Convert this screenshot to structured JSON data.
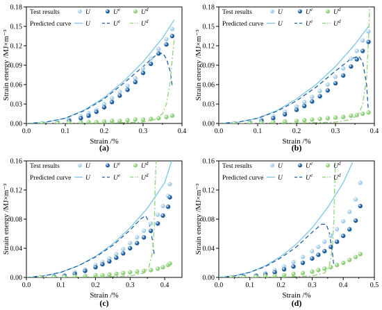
{
  "colors": {
    "U": "#a9cfe8",
    "Ue": "#1e5fa0",
    "Ud": "#8fd07a",
    "curve_U": "#7cc6e4",
    "curve_Ue": "#1e5fa0",
    "curve_Ud": "#8fd07a",
    "axis": "#000000"
  },
  "legend": {
    "test_label": "Test results",
    "pred_label": "Predicted curve",
    "sym_U": "U",
    "sym_Ue": "U",
    "sym_Ue_sup": "e",
    "sym_Ud": "U",
    "sym_Ud_sup": "d"
  },
  "chart_data": [
    {
      "type": "scatter",
      "panel_label": "(a)",
      "xlabel": "Strain /%",
      "ylabel": "Strain energy /MJ×m⁻³",
      "xlim": [
        0,
        0.4
      ],
      "ylim": [
        0,
        0.18
      ],
      "xticks": [
        "0.0",
        "0.1",
        "0.2",
        "0.3",
        "0.4"
      ],
      "yticks": [
        "0.00",
        "0.03",
        "0.06",
        "0.09",
        "0.12",
        "0.15",
        "0.18"
      ],
      "x_tick_values": [
        0,
        0.1,
        0.2,
        0.3,
        0.4
      ],
      "y_tick_values": [
        0,
        0.03,
        0.06,
        0.09,
        0.12,
        0.15,
        0.18
      ],
      "series": [
        {
          "name": "U",
          "kind": "points",
          "x": [
            0.04,
            0.08,
            0.11,
            0.14,
            0.16,
            0.18,
            0.2,
            0.22,
            0.24,
            0.26,
            0.28,
            0.3,
            0.32,
            0.34,
            0.36,
            0.375
          ],
          "y": [
            0.0,
            0.002,
            0.006,
            0.011,
            0.016,
            0.021,
            0.03,
            0.039,
            0.049,
            0.058,
            0.07,
            0.085,
            0.1,
            0.115,
            0.13,
            0.146
          ]
        },
        {
          "name": "Ue",
          "kind": "points",
          "x": [
            0.04,
            0.08,
            0.11,
            0.14,
            0.16,
            0.18,
            0.2,
            0.22,
            0.24,
            0.26,
            0.28,
            0.3,
            0.32,
            0.34,
            0.36,
            0.375
          ],
          "y": [
            0.0,
            0.001,
            0.004,
            0.008,
            0.012,
            0.018,
            0.025,
            0.033,
            0.043,
            0.052,
            0.064,
            0.078,
            0.092,
            0.108,
            0.122,
            0.135
          ]
        },
        {
          "name": "Ud",
          "kind": "points",
          "x": [
            0.04,
            0.08,
            0.11,
            0.14,
            0.16,
            0.18,
            0.2,
            0.22,
            0.24,
            0.26,
            0.28,
            0.3,
            0.32,
            0.34,
            0.36,
            0.375
          ],
          "y": [
            0.0,
            0.0005,
            0.001,
            0.0015,
            0.002,
            0.002,
            0.003,
            0.004,
            0.004,
            0.005,
            0.006,
            0.006,
            0.007,
            0.008,
            0.01,
            0.012
          ]
        },
        {
          "name": "U",
          "kind": "curve",
          "x": [
            0,
            0.05,
            0.1,
            0.15,
            0.2,
            0.25,
            0.3,
            0.35,
            0.38
          ],
          "y": [
            0,
            0.002,
            0.008,
            0.021,
            0.04,
            0.065,
            0.095,
            0.132,
            0.16
          ]
        },
        {
          "name": "Ue",
          "kind": "curve",
          "x": [
            0,
            0.05,
            0.1,
            0.15,
            0.2,
            0.25,
            0.3,
            0.33,
            0.35,
            0.36,
            0.37,
            0.375
          ],
          "y": [
            0,
            0.002,
            0.008,
            0.02,
            0.038,
            0.062,
            0.088,
            0.104,
            0.109,
            0.1,
            0.08,
            0.058
          ]
        },
        {
          "name": "Ud",
          "kind": "curve",
          "x": [
            0,
            0.1,
            0.2,
            0.3,
            0.33,
            0.35,
            0.36,
            0.37,
            0.375,
            0.38
          ],
          "y": [
            0,
            0.0,
            0.0005,
            0.002,
            0.006,
            0.015,
            0.03,
            0.065,
            0.1,
            0.13
          ]
        }
      ]
    },
    {
      "type": "scatter",
      "panel_label": "(b)",
      "xlabel": "Strain /%",
      "ylabel": "Strain energy /MJ×m⁻³",
      "xlim": [
        0,
        0.4
      ],
      "ylim": [
        0,
        0.18
      ],
      "xticks": [
        "0.0",
        "0.1",
        "0.2",
        "0.3",
        "0.4"
      ],
      "yticks": [
        "0.00",
        "0.03",
        "0.06",
        "0.09",
        "0.12",
        "0.15",
        "0.18"
      ],
      "x_tick_values": [
        0,
        0.1,
        0.2,
        0.3,
        0.4
      ],
      "y_tick_values": [
        0,
        0.03,
        0.06,
        0.09,
        0.12,
        0.15,
        0.18
      ],
      "series": [
        {
          "name": "U",
          "kind": "points",
          "x": [
            0.04,
            0.08,
            0.11,
            0.14,
            0.17,
            0.2,
            0.22,
            0.24,
            0.26,
            0.28,
            0.3,
            0.32,
            0.34,
            0.355,
            0.37,
            0.385
          ],
          "y": [
            0.0,
            0.002,
            0.006,
            0.011,
            0.018,
            0.026,
            0.033,
            0.041,
            0.05,
            0.06,
            0.072,
            0.085,
            0.1,
            0.112,
            0.128,
            0.142
          ]
        },
        {
          "name": "Ue",
          "kind": "points",
          "x": [
            0.04,
            0.08,
            0.11,
            0.14,
            0.17,
            0.2,
            0.22,
            0.24,
            0.26,
            0.28,
            0.3,
            0.32,
            0.34,
            0.355,
            0.37,
            0.385
          ],
          "y": [
            0.0,
            0.001,
            0.004,
            0.008,
            0.014,
            0.021,
            0.027,
            0.034,
            0.042,
            0.051,
            0.062,
            0.074,
            0.088,
            0.099,
            0.112,
            0.126
          ]
        },
        {
          "name": "Ud",
          "kind": "points",
          "x": [
            0.04,
            0.08,
            0.11,
            0.14,
            0.17,
            0.2,
            0.22,
            0.24,
            0.26,
            0.28,
            0.3,
            0.32,
            0.34,
            0.355,
            0.37,
            0.385
          ],
          "y": [
            0.0,
            0.0005,
            0.001,
            0.002,
            0.003,
            0.004,
            0.005,
            0.006,
            0.007,
            0.008,
            0.009,
            0.01,
            0.012,
            0.013,
            0.015,
            0.017
          ]
        },
        {
          "name": "U",
          "kind": "curve",
          "x": [
            0,
            0.05,
            0.1,
            0.15,
            0.2,
            0.25,
            0.3,
            0.35,
            0.385
          ],
          "y": [
            0,
            0.002,
            0.008,
            0.02,
            0.038,
            0.06,
            0.088,
            0.122,
            0.15
          ]
        },
        {
          "name": "Ue",
          "kind": "curve",
          "x": [
            0,
            0.05,
            0.1,
            0.15,
            0.2,
            0.25,
            0.3,
            0.34,
            0.36,
            0.37,
            0.38,
            0.385
          ],
          "y": [
            0,
            0.002,
            0.008,
            0.019,
            0.035,
            0.056,
            0.081,
            0.1,
            0.104,
            0.095,
            0.06,
            0.015
          ]
        },
        {
          "name": "Ud",
          "kind": "curve",
          "x": [
            0,
            0.1,
            0.2,
            0.3,
            0.34,
            0.36,
            0.37,
            0.38,
            0.385,
            0.388
          ],
          "y": [
            0,
            0.0,
            0.0005,
            0.002,
            0.006,
            0.015,
            0.03,
            0.07,
            0.13,
            0.18
          ]
        }
      ]
    },
    {
      "type": "scatter",
      "panel_label": "(c)",
      "xlabel": "Strain /%",
      "ylabel": "Strain energy /MJ×m⁻³",
      "xlim": [
        0,
        0.45
      ],
      "ylim": [
        0,
        0.16
      ],
      "xticks": [
        "0.0",
        "0.1",
        "0.2",
        "0.3",
        "0.4"
      ],
      "yticks": [
        "0.00",
        "0.04",
        "0.08",
        "0.12",
        "0.16"
      ],
      "x_tick_values": [
        0,
        0.1,
        0.2,
        0.3,
        0.4
      ],
      "y_tick_values": [
        0,
        0.04,
        0.08,
        0.12,
        0.16
      ],
      "series": [
        {
          "name": "U",
          "kind": "points",
          "x": [
            0.04,
            0.08,
            0.11,
            0.14,
            0.17,
            0.2,
            0.22,
            0.24,
            0.26,
            0.28,
            0.3,
            0.32,
            0.34,
            0.36,
            0.38,
            0.395,
            0.41,
            0.415
          ],
          "y": [
            0.0,
            0.001,
            0.003,
            0.007,
            0.011,
            0.017,
            0.021,
            0.026,
            0.032,
            0.039,
            0.047,
            0.055,
            0.064,
            0.074,
            0.086,
            0.098,
            0.112,
            0.128
          ]
        },
        {
          "name": "Ue",
          "kind": "points",
          "x": [
            0.04,
            0.08,
            0.11,
            0.14,
            0.17,
            0.2,
            0.22,
            0.24,
            0.26,
            0.28,
            0.3,
            0.32,
            0.34,
            0.36,
            0.38,
            0.395,
            0.41,
            0.415
          ],
          "y": [
            0.0,
            0.001,
            0.002,
            0.005,
            0.009,
            0.014,
            0.018,
            0.022,
            0.027,
            0.033,
            0.04,
            0.047,
            0.055,
            0.064,
            0.074,
            0.085,
            0.097,
            0.11
          ]
        },
        {
          "name": "Ud",
          "kind": "points",
          "x": [
            0.04,
            0.08,
            0.11,
            0.14,
            0.17,
            0.2,
            0.22,
            0.24,
            0.26,
            0.28,
            0.3,
            0.32,
            0.34,
            0.36,
            0.38,
            0.395,
            0.41,
            0.415
          ],
          "y": [
            0.0,
            0.0003,
            0.0006,
            0.001,
            0.002,
            0.003,
            0.003,
            0.004,
            0.005,
            0.006,
            0.007,
            0.008,
            0.009,
            0.01,
            0.012,
            0.014,
            0.017,
            0.019
          ]
        },
        {
          "name": "U",
          "kind": "curve",
          "x": [
            0,
            0.05,
            0.1,
            0.15,
            0.2,
            0.25,
            0.3,
            0.35,
            0.4,
            0.42
          ],
          "y": [
            0,
            0.002,
            0.007,
            0.016,
            0.029,
            0.046,
            0.068,
            0.095,
            0.13,
            0.16
          ]
        },
        {
          "name": "Ue",
          "kind": "curve",
          "x": [
            0,
            0.05,
            0.1,
            0.15,
            0.2,
            0.25,
            0.3,
            0.33,
            0.345,
            0.355,
            0.365,
            0.37
          ],
          "y": [
            0,
            0.002,
            0.007,
            0.016,
            0.028,
            0.044,
            0.065,
            0.08,
            0.085,
            0.075,
            0.05,
            0.03
          ]
        },
        {
          "name": "Ud",
          "kind": "curve",
          "x": [
            0,
            0.1,
            0.2,
            0.3,
            0.34,
            0.355,
            0.365,
            0.37,
            0.372,
            0.375
          ],
          "y": [
            0,
            0.0,
            0.0005,
            0.002,
            0.006,
            0.015,
            0.035,
            0.07,
            0.12,
            0.16
          ]
        }
      ]
    },
    {
      "type": "scatter",
      "panel_label": "(d)",
      "xlabel": "Strain /%",
      "ylabel": "Strain energy /MJ×m⁻³",
      "xlim": [
        0,
        0.5
      ],
      "ylim": [
        0,
        0.16
      ],
      "xticks": [
        "0.0",
        "0.1",
        "0.2",
        "0.3",
        "0.4",
        "0.5"
      ],
      "yticks": [
        "0.00",
        "0.04",
        "0.08",
        "0.12",
        "0.16"
      ],
      "x_tick_values": [
        0,
        0.1,
        0.2,
        0.3,
        0.4,
        0.5
      ],
      "y_tick_values": [
        0,
        0.04,
        0.08,
        0.12,
        0.16
      ],
      "series": [
        {
          "name": "U",
          "kind": "points",
          "x": [
            0.04,
            0.08,
            0.12,
            0.15,
            0.18,
            0.21,
            0.24,
            0.27,
            0.3,
            0.32,
            0.34,
            0.36,
            0.38,
            0.4,
            0.42,
            0.44,
            0.455
          ],
          "y": [
            0.0,
            0.001,
            0.003,
            0.006,
            0.01,
            0.015,
            0.021,
            0.028,
            0.036,
            0.042,
            0.049,
            0.057,
            0.066,
            0.077,
            0.09,
            0.107,
            0.13
          ]
        },
        {
          "name": "Ue",
          "kind": "points",
          "x": [
            0.04,
            0.08,
            0.12,
            0.15,
            0.18,
            0.21,
            0.24,
            0.27,
            0.3,
            0.32,
            0.34,
            0.36,
            0.38,
            0.4,
            0.42,
            0.44,
            0.455
          ],
          "y": [
            0.0,
            0.001,
            0.002,
            0.004,
            0.007,
            0.011,
            0.015,
            0.02,
            0.026,
            0.031,
            0.036,
            0.042,
            0.049,
            0.057,
            0.066,
            0.078,
            0.098
          ]
        },
        {
          "name": "Ud",
          "kind": "points",
          "x": [
            0.04,
            0.08,
            0.12,
            0.15,
            0.18,
            0.21,
            0.24,
            0.27,
            0.3,
            0.32,
            0.34,
            0.36,
            0.38,
            0.4,
            0.42,
            0.44,
            0.455
          ],
          "y": [
            0.0,
            0.0003,
            0.0008,
            0.0015,
            0.002,
            0.003,
            0.005,
            0.006,
            0.008,
            0.01,
            0.012,
            0.014,
            0.017,
            0.02,
            0.024,
            0.028,
            0.032
          ]
        },
        {
          "name": "U",
          "kind": "curve",
          "x": [
            0,
            0.05,
            0.1,
            0.15,
            0.2,
            0.25,
            0.3,
            0.35,
            0.4,
            0.43
          ],
          "y": [
            0,
            0.002,
            0.007,
            0.016,
            0.029,
            0.046,
            0.068,
            0.096,
            0.13,
            0.158
          ]
        },
        {
          "name": "Ue",
          "kind": "curve",
          "x": [
            0,
            0.05,
            0.1,
            0.15,
            0.2,
            0.25,
            0.3,
            0.33,
            0.345,
            0.355,
            0.365,
            0.37
          ],
          "y": [
            0,
            0.002,
            0.007,
            0.015,
            0.027,
            0.042,
            0.062,
            0.073,
            0.073,
            0.062,
            0.035,
            0.015
          ]
        },
        {
          "name": "Ud",
          "kind": "curve",
          "x": [
            0,
            0.1,
            0.2,
            0.3,
            0.34,
            0.355,
            0.365,
            0.37,
            0.372,
            0.375
          ],
          "y": [
            0,
            0.0,
            0.0005,
            0.002,
            0.006,
            0.015,
            0.04,
            0.08,
            0.12,
            0.16
          ]
        }
      ]
    }
  ]
}
